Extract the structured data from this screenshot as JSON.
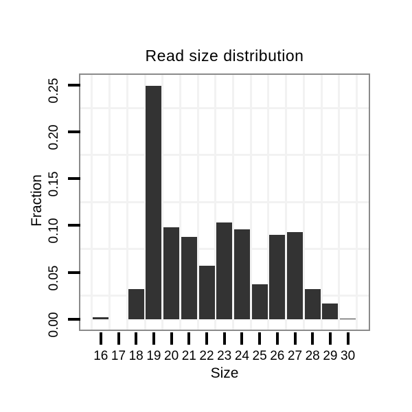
{
  "chart_data": {
    "type": "bar",
    "title": "Read size distribution",
    "xlabel": "Size",
    "ylabel": "Fraction",
    "categories": [
      16,
      17,
      18,
      19,
      20,
      21,
      22,
      23,
      24,
      25,
      26,
      27,
      28,
      29,
      30
    ],
    "values": [
      0.002,
      0.0,
      0.032,
      0.249,
      0.098,
      0.088,
      0.057,
      0.103,
      0.096,
      0.037,
      0.09,
      0.093,
      0.032,
      0.017,
      0.001
    ],
    "x_tick_labels": [
      "16",
      "17",
      "18",
      "19",
      "20",
      "21",
      "22",
      "23",
      "24",
      "25",
      "26",
      "27",
      "28",
      "29",
      "30"
    ],
    "yticks": [
      0.0,
      0.05,
      0.1,
      0.15,
      0.2,
      0.25
    ],
    "ytick_labels": [
      "0.00",
      "0.05",
      "0.10",
      "0.15",
      "0.20",
      "0.25"
    ],
    "ylim": [
      0,
      0.26
    ],
    "minor_gridlines_y": [
      0.025,
      0.075,
      0.125,
      0.175,
      0.225
    ],
    "grid": "very light minor gridlines, horizontal between ticks and vertical between bars",
    "legend": "none",
    "bar_color": "#333333",
    "panel_border_color": "#8a8a8a",
    "gridline_color": "#f2f2f2",
    "tick_color": "#000000",
    "text_color": "#000000",
    "background_color": "#ffffff"
  }
}
